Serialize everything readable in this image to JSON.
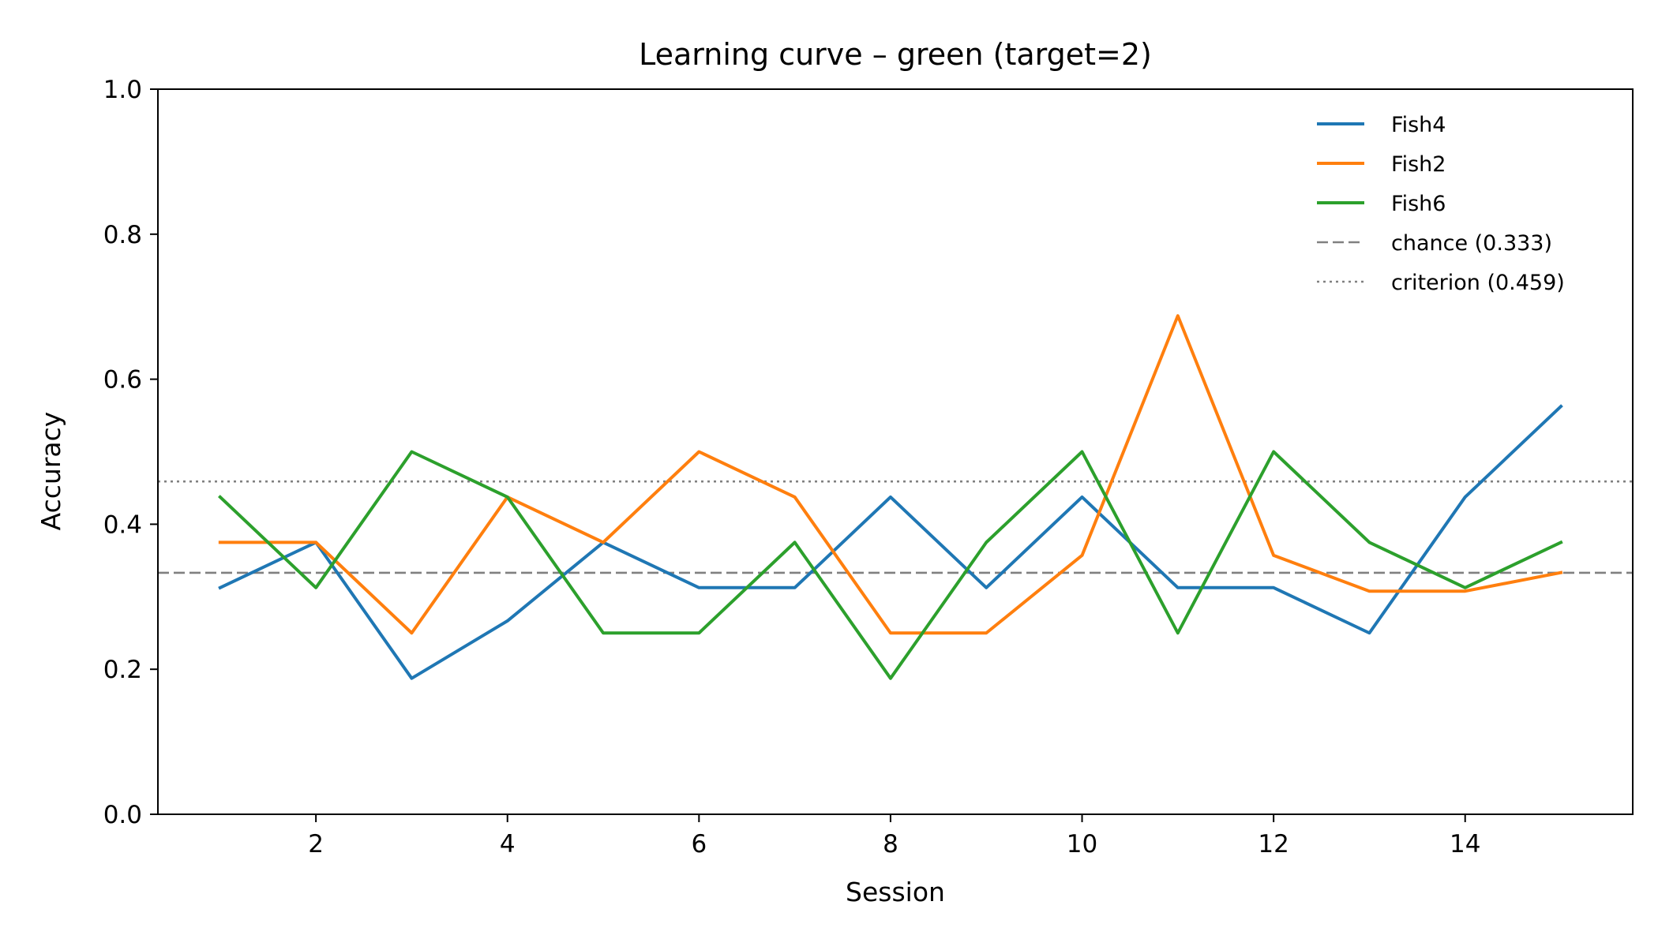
{
  "chart_data": {
    "type": "line",
    "title": "Learning curve – green (target=2)",
    "xlabel": "Session",
    "ylabel": "Accuracy",
    "xlim": [
      0.35,
      15.75
    ],
    "ylim": [
      0.0,
      1.0
    ],
    "x_ticks": [
      2,
      4,
      6,
      8,
      10,
      12,
      14
    ],
    "x_tick_labels": [
      "2",
      "4",
      "6",
      "8",
      "10",
      "12",
      "14"
    ],
    "y_ticks": [
      0.0,
      0.2,
      0.4,
      0.6,
      0.8,
      1.0
    ],
    "y_tick_labels": [
      "0.0",
      "0.2",
      "0.4",
      "0.6",
      "0.8",
      "1.0"
    ],
    "grid": false,
    "legend_position": "top-right",
    "x": [
      1,
      2,
      3,
      4,
      5,
      6,
      7,
      8,
      9,
      10,
      11,
      12,
      13,
      14,
      15
    ],
    "series": [
      {
        "name": "Fish4",
        "color": "#1f77b4",
        "values": [
          0.3125,
          0.375,
          0.1875,
          0.2667,
          0.375,
          0.3125,
          0.3125,
          0.4375,
          0.3125,
          0.4375,
          0.3125,
          0.3125,
          0.25,
          0.4375,
          0.5625
        ]
      },
      {
        "name": "Fish2",
        "color": "#ff7f0e",
        "values": [
          0.375,
          0.375,
          0.25,
          0.4375,
          0.375,
          0.5,
          0.4375,
          0.25,
          0.25,
          0.3571,
          0.6875,
          0.3571,
          0.3077,
          0.3077,
          0.3333
        ]
      },
      {
        "name": "Fish6",
        "color": "#2ca02c",
        "values": [
          0.4375,
          0.3125,
          0.5,
          0.4375,
          0.25,
          0.25,
          0.375,
          0.1875,
          0.375,
          0.5,
          0.25,
          0.5,
          0.375,
          0.3125,
          0.375
        ]
      }
    ],
    "reference_lines": [
      {
        "name": "chance (0.333)",
        "y": 0.333,
        "style": "dashed",
        "color": "#808080"
      },
      {
        "name": "criterion (0.459)",
        "y": 0.459,
        "style": "dotted",
        "color": "#808080"
      }
    ]
  }
}
